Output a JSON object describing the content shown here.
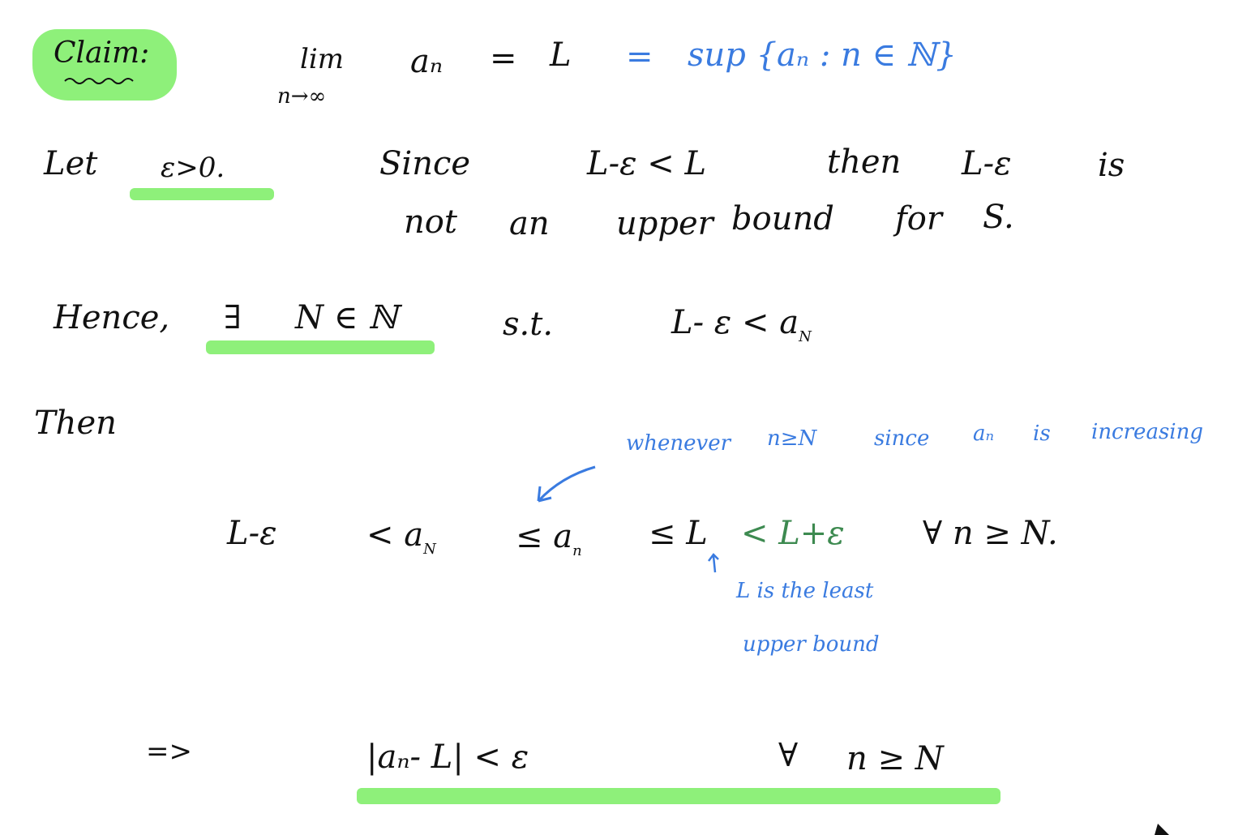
{
  "claim": {
    "label": "Claim:",
    "lim": "lim",
    "lim_sub": "n→∞",
    "lhs": "aₙ",
    "eq1": "=",
    "L": "L",
    "eq2": "=",
    "sup": "sup {aₙ : n ∈ ℕ}"
  },
  "line1": {
    "let": "Let",
    "eps": "ε>0.",
    "since": "Since",
    "ineq": "L-ε < L",
    "then": "then",
    "lme": "L-ε",
    "is": "is"
  },
  "line2": {
    "not": "not",
    "an": "an",
    "upper": "upper",
    "bound": "bound",
    "for": "for",
    "S": "S."
  },
  "line3": {
    "hence": "Hence,",
    "exists": "∃",
    "NinN": "N ∈ ℕ",
    "st": "s.t.",
    "ineq": "L- ε < a",
    "ineq_sub": "N"
  },
  "line4": {
    "then": "Then"
  },
  "annotation1": {
    "whenever": "whenever",
    "ngeN": "n≥N",
    "since": "since",
    "an": "aₙ",
    "is": "is",
    "increasing": "increasing"
  },
  "line5": {
    "lme": "L-ε",
    "lt_aN": "< a",
    "aN_sub": "N",
    "le_an": "≤ a",
    "an_sub": "n",
    "le_L": "≤ L",
    "lt_Lpe": "< L+ε",
    "forall": "∀ n ≥ N."
  },
  "annotation2": {
    "l1": "L is the least",
    "l2": "upper bound"
  },
  "line6": {
    "implies": "=>",
    "abs": "|aₙ- L| < ε",
    "forall": "∀",
    "ngeN": "n ≥ N"
  },
  "colors": {
    "highlight": "#8ef07a",
    "blue_ink": "#3a7be0",
    "green_ink": "#3d8a50",
    "black_ink": "#111111"
  }
}
